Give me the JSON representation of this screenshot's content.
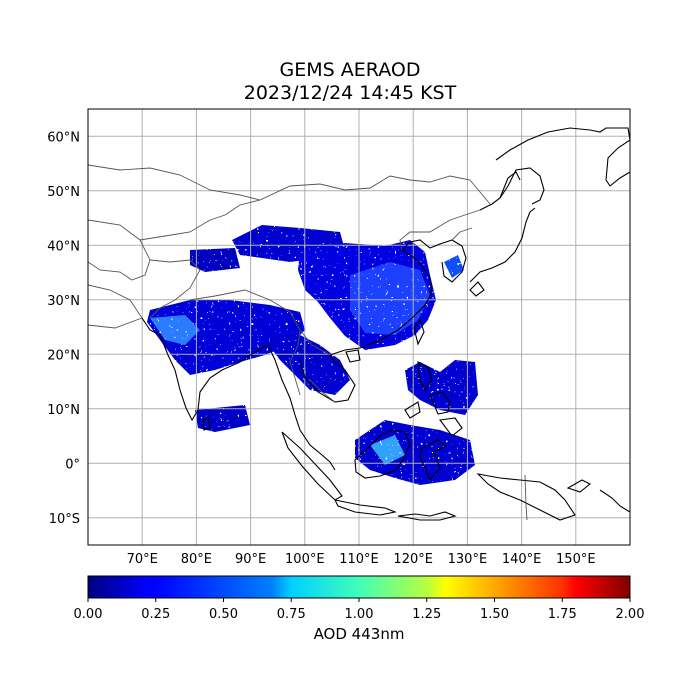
{
  "title": {
    "line1": "GEMS AERAOD",
    "line2": "2023/12/24 14:45 KST"
  },
  "map": {
    "projection": "plate-carree",
    "lon_range": [
      60,
      160
    ],
    "lat_range": [
      -15,
      65
    ],
    "gridlines": true,
    "lat_ticks": [
      {
        "value": 60,
        "label": "60°N"
      },
      {
        "value": 50,
        "label": "50°N"
      },
      {
        "value": 40,
        "label": "40°N"
      },
      {
        "value": 30,
        "label": "30°N"
      },
      {
        "value": 20,
        "label": "20°N"
      },
      {
        "value": 10,
        "label": "10°N"
      },
      {
        "value": 0,
        "label": "0°"
      },
      {
        "value": -10,
        "label": "10°S"
      }
    ],
    "lon_ticks": [
      {
        "value": 70,
        "label": "70°E"
      },
      {
        "value": 80,
        "label": "80°E"
      },
      {
        "value": 90,
        "label": "90°E"
      },
      {
        "value": 100,
        "label": "100°E"
      },
      {
        "value": 110,
        "label": "110°E"
      },
      {
        "value": 120,
        "label": "120°E"
      },
      {
        "value": 130,
        "label": "130°E"
      },
      {
        "value": 140,
        "label": "140°E"
      },
      {
        "value": 150,
        "label": "150°E"
      }
    ]
  },
  "colorbar": {
    "colormap": "jet",
    "range": [
      0.0,
      2.0
    ],
    "label": "AOD 443nm",
    "ticks": [
      {
        "value": 0.0,
        "label": "0.00"
      },
      {
        "value": 0.25,
        "label": "0.25"
      },
      {
        "value": 0.5,
        "label": "0.50"
      },
      {
        "value": 0.75,
        "label": "0.75"
      },
      {
        "value": 1.0,
        "label": "1.00"
      },
      {
        "value": 1.25,
        "label": "1.25"
      },
      {
        "value": 1.5,
        "label": "1.50"
      },
      {
        "value": 1.75,
        "label": "1.75"
      },
      {
        "value": 2.0,
        "label": "2.00"
      }
    ]
  },
  "colors": {
    "low_aod": "#0000c8",
    "mid_aod": "#2060ff",
    "coastline": "#000000",
    "border": "#555555",
    "grid": "#b0b0b0"
  }
}
